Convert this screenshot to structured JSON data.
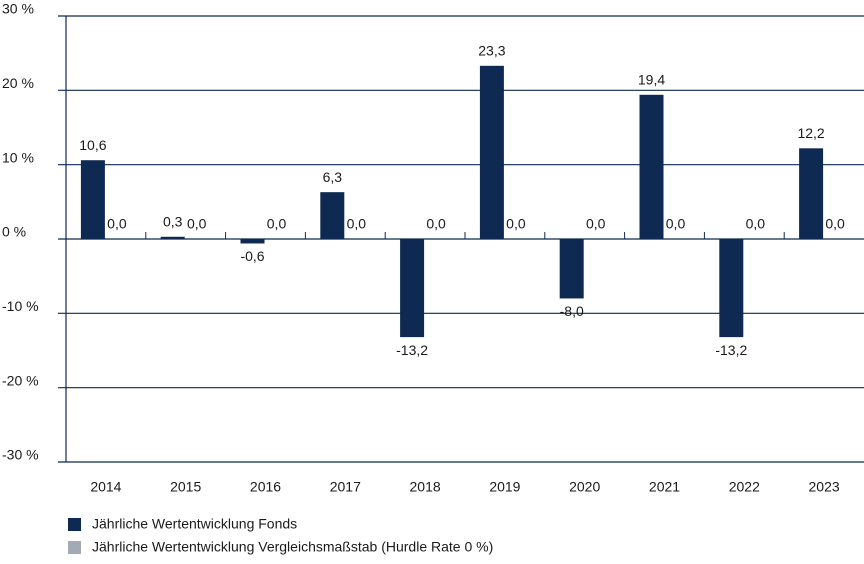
{
  "chart_data": {
    "type": "bar",
    "categories": [
      "2014",
      "2015",
      "2016",
      "2017",
      "2018",
      "2019",
      "2020",
      "2021",
      "2022",
      "2023"
    ],
    "series": [
      {
        "name": "Jährliche Wertentwicklung Fonds",
        "color": "#0f2a52",
        "values": [
          10.6,
          0.3,
          -0.6,
          6.3,
          -13.2,
          23.3,
          -8.0,
          19.4,
          -13.2,
          12.2
        ],
        "value_labels": [
          "10,6",
          "0,3",
          "-0,6",
          "6,3",
          "-13,2",
          "23,3",
          "-8,0",
          "19,4",
          "-13,2",
          "12,2"
        ]
      },
      {
        "name": "Jährliche Wertentwicklung Vergleichsmaßstab (Hurdle Rate 0 %)",
        "color": "#a3aab3",
        "values": [
          0,
          0,
          0,
          0,
          0,
          0,
          0,
          0,
          0,
          0
        ],
        "value_labels": [
          "0,0",
          "0,0",
          "0,0",
          "0,0",
          "0,0",
          "0,0",
          "0,0",
          "0,0",
          "0,0",
          "0,0"
        ]
      }
    ],
    "ylim": [
      -30,
      30
    ],
    "yticks": [
      {
        "value": -30,
        "label": "-30 %"
      },
      {
        "value": -20,
        "label": "-20 %"
      },
      {
        "value": -10,
        "label": "-10 %"
      },
      {
        "value": 0,
        "label": "0 %"
      },
      {
        "value": 10,
        "label": "10 %"
      },
      {
        "value": 20,
        "label": "20 %"
      },
      {
        "value": 30,
        "label": "30 %"
      }
    ],
    "grid": true
  }
}
